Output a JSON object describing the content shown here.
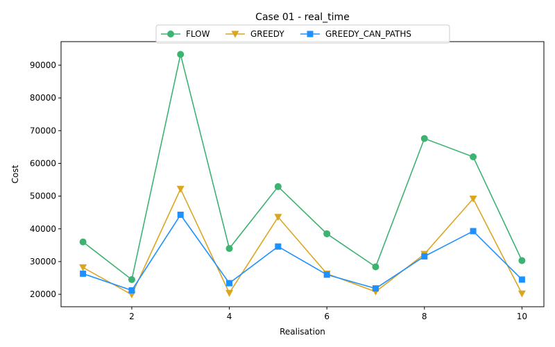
{
  "chart_data": {
    "type": "line",
    "title": "Case 01 - real_time",
    "xlabel": "Realisation",
    "ylabel": "Cost",
    "x": [
      1,
      2,
      3,
      4,
      5,
      6,
      7,
      8,
      9,
      10
    ],
    "xlim": [
      0.55,
      10.45
    ],
    "ylim": [
      16200,
      97200
    ],
    "xticks": [
      2,
      4,
      6,
      8,
      10
    ],
    "xtick_labels": [
      "2",
      "4",
      "6",
      "8",
      "10"
    ],
    "yticks": [
      20000,
      30000,
      40000,
      50000,
      60000,
      70000,
      80000,
      90000
    ],
    "ytick_labels": [
      "20000",
      "30000",
      "40000",
      "50000",
      "60000",
      "70000",
      "80000",
      "90000"
    ],
    "grid": false,
    "legend_position": "top-center",
    "series": [
      {
        "name": "FLOW",
        "color": "#3cb371",
        "marker": "circle",
        "values": [
          36000,
          24500,
          93300,
          34000,
          52900,
          38500,
          28400,
          67600,
          62000,
          30300
        ]
      },
      {
        "name": "GREEDY",
        "color": "#daa520",
        "marker": "triangle-down",
        "values": [
          28200,
          19900,
          52200,
          20400,
          43600,
          26300,
          20800,
          32300,
          49200,
          20200
        ]
      },
      {
        "name": "GREEDY_CAN_PATHS",
        "color": "#1e90ff",
        "marker": "square",
        "values": [
          26300,
          21200,
          44300,
          23400,
          34600,
          26000,
          21800,
          31600,
          39300,
          24500
        ]
      }
    ]
  }
}
